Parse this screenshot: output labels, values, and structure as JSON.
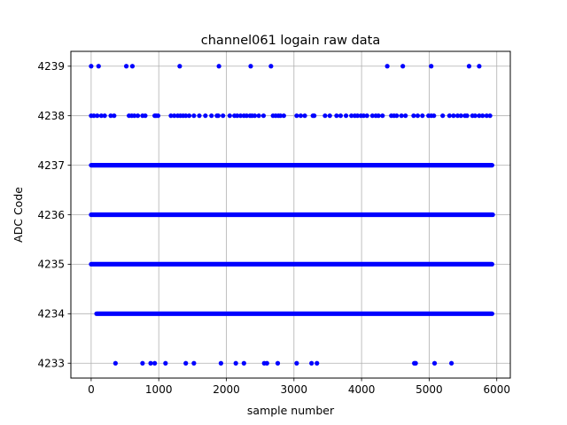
{
  "chart_data": {
    "type": "scatter",
    "title": "channel061 logain raw data",
    "xlabel": "sample number",
    "ylabel": "ADC Code",
    "xlim": [
      -300,
      6200
    ],
    "ylim": [
      4232.7,
      4239.3
    ],
    "xticks": [
      0,
      1000,
      2000,
      3000,
      4000,
      5000,
      6000
    ],
    "xtick_labels": [
      "0",
      "1000",
      "2000",
      "3000",
      "4000",
      "5000",
      "6000"
    ],
    "yticks": [
      4233,
      4234,
      4235,
      4236,
      4237,
      4238,
      4239
    ],
    "ytick_labels": [
      "4233",
      "4234",
      "4235",
      "4236",
      "4237",
      "4238",
      "4239"
    ],
    "grid": true,
    "marker_color": "#0000ff",
    "series": [
      {
        "points": [
          {
            "y": 4239,
            "x": [
              0,
              110,
              520,
              610,
              1310,
              1890,
              2360,
              2660,
              4380,
              4610,
              5030,
              5590,
              5740
            ]
          },
          {
            "y": 4238,
            "x": [
              0,
              40,
              90,
              150,
              200,
              290,
              340,
              560,
              600,
              640,
              690,
              760,
              800,
              940,
              960,
              990,
              1180,
              1230,
              1280,
              1320,
              1360,
              1400,
              1450,
              1520,
              1600,
              1690,
              1780,
              1860,
              1880,
              1950,
              2050,
              2120,
              2160,
              2210,
              2260,
              2300,
              2350,
              2380,
              2420,
              2480,
              2550,
              2690,
              2730,
              2770,
              2800,
              2850,
              3040,
              3100,
              3160,
              3280,
              3300,
              3460,
              3530,
              3630,
              3690,
              3770,
              3850,
              3900,
              3940,
              3990,
              4030,
              4080,
              4160,
              4210,
              4250,
              4310,
              4440,
              4480,
              4520,
              4590,
              4650,
              4770,
              4830,
              4900,
              4990,
              5030,
              5070,
              5200,
              5300,
              5360,
              5420,
              5470,
              5530,
              5560,
              5640,
              5680,
              5740,
              5790,
              5850,
              5900
            ]
          },
          {
            "y": 4233,
            "x": [
              360,
              760,
              880,
              940,
              1100,
              1400,
              1520,
              1920,
              2140,
              2260,
              2560,
              2600,
              2760,
              3040,
              3260,
              3340,
              4780,
              4800,
              5080,
              5330
            ]
          }
        ],
        "bands": [
          {
            "y": 4237,
            "x_range": [
              0,
              5930
            ]
          },
          {
            "y": 4236,
            "x_range": [
              0,
              5940
            ]
          },
          {
            "y": 4235,
            "x_range": [
              0,
              5930
            ]
          },
          {
            "y": 4234,
            "x_range": [
              80,
              5930
            ]
          }
        ]
      }
    ]
  }
}
